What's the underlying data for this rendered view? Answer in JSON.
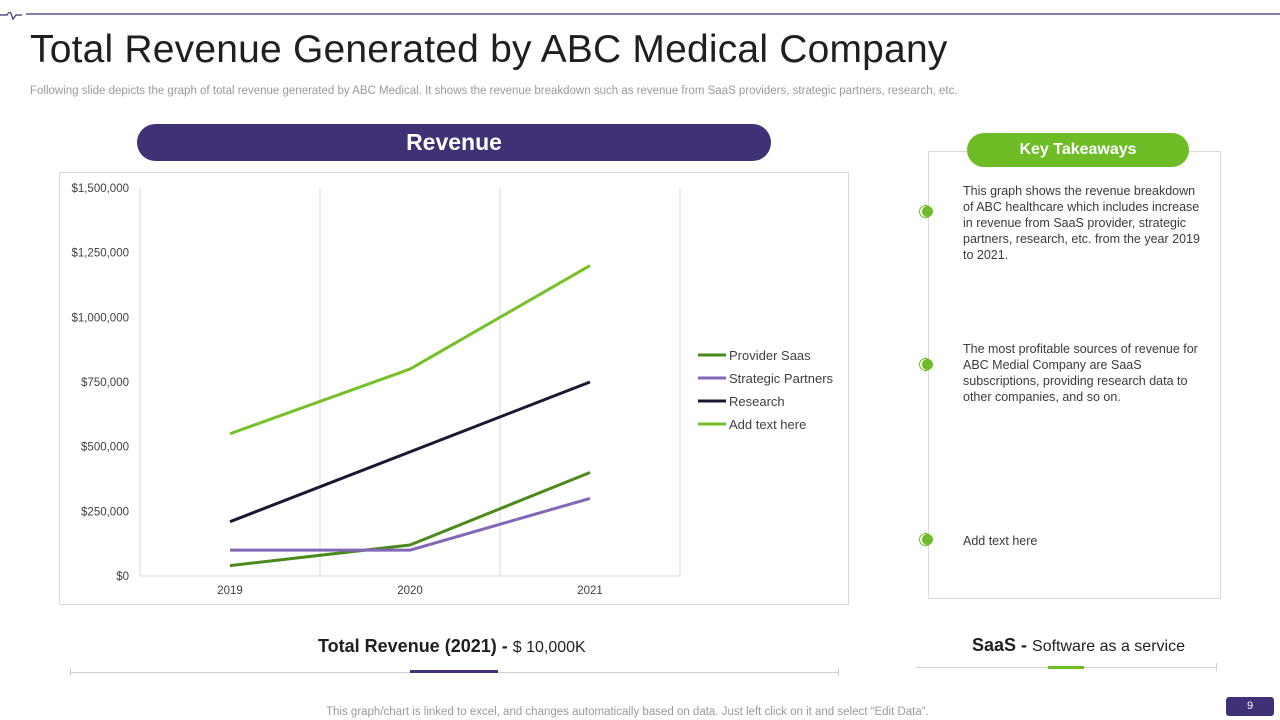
{
  "header": {
    "title": "Total Revenue Generated by ABC Medical Company",
    "subtitle": "Following slide depicts the graph of total revenue generated by ABC Medical. It shows the revenue breakdown such as revenue from SaaS providers, strategic partners, research, etc."
  },
  "chart_header": {
    "label": "Revenue"
  },
  "chart_data": {
    "type": "line",
    "title": "Revenue",
    "categories": [
      "2019",
      "2020",
      "2021"
    ],
    "ylim": [
      0,
      1500000
    ],
    "yticks": [
      0,
      250000,
      500000,
      750000,
      1000000,
      1250000,
      1500000
    ],
    "ytick_labels": [
      "$0",
      "$250,000",
      "$500,000",
      "$750,000",
      "$1,000,000",
      "$1,250,000",
      "$1,500,000"
    ],
    "grid": "vertical",
    "legend_position": "right",
    "series": [
      {
        "name": "Provider Saas",
        "color": "#4a8a1c",
        "values": [
          40000,
          120000,
          400000
        ]
      },
      {
        "name": "Strategic Partners",
        "color": "#8466b8",
        "values": [
          100000,
          100000,
          300000
        ]
      },
      {
        "name": "Research",
        "color": "#1c1833",
        "values": [
          210000,
          480000,
          750000
        ]
      },
      {
        "name": "Add text here",
        "color": "#74c12a",
        "values": [
          550000,
          800000,
          1200000
        ]
      }
    ]
  },
  "takeaways": {
    "title": "Key Takeaways",
    "items": [
      {
        "text": "This graph shows the revenue breakdown of ABC healthcare which includes increase in revenue  from SaaS provider,  strategic partners, research, etc. from the year 2019 to 2021."
      },
      {
        "text": "The most profitable sources of revenue for ABC Medial Company are SaaS subscriptions, providing research data to other companies, and so on."
      },
      {
        "text": "Add text here"
      }
    ]
  },
  "summary": {
    "total_label": "Total Revenue (2021) - ",
    "total_value": "$ 10,000K",
    "saas_label": "SaaS - ",
    "saas_value": "Software as a service"
  },
  "footer": {
    "note": "This graph/chart is linked to excel,  and changes automatically based on data. Just left click on it and select “Edit Data”.",
    "page": "9"
  },
  "colors": {
    "brand_purple": "#403075",
    "brand_green": "#6ebd27"
  }
}
